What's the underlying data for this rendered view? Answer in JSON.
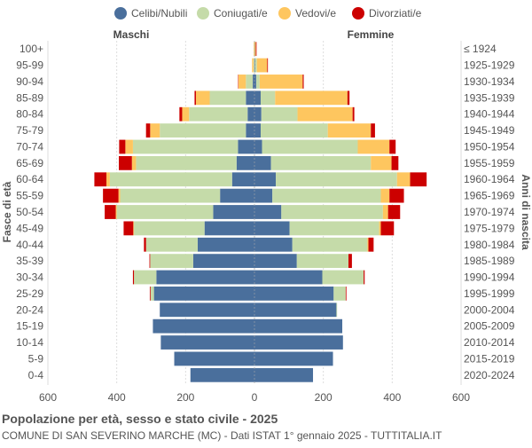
{
  "colors": {
    "celibi": "#4a6f9c",
    "coniugati": "#c5dba9",
    "vedovi": "#fec65f",
    "divorziati": "#cc0000",
    "grid": "#dddddd",
    "text": "#555555"
  },
  "chart_data": {
    "type": "bar",
    "orientation": "horizontal-pyramid",
    "left_header": "Maschi",
    "right_header": "Femmine",
    "ylabel_left": "Fasce di età",
    "ylabel_right": "Anni di nascita",
    "x_ticks": [
      "600",
      "400",
      "200",
      "0",
      "200",
      "400",
      "600"
    ],
    "xlim": [
      -600,
      600
    ],
    "grid": true,
    "legend_placement": "top",
    "categories": [
      "100+",
      "95-99",
      "90-94",
      "85-89",
      "80-84",
      "75-79",
      "70-74",
      "65-69",
      "60-64",
      "55-59",
      "50-54",
      "45-49",
      "40-44",
      "35-39",
      "30-34",
      "25-29",
      "20-24",
      "15-19",
      "10-14",
      "5-9",
      "0-4"
    ],
    "birth_years": [
      "≤ 1924",
      "1925-1929",
      "1930-1934",
      "1935-1939",
      "1940-1944",
      "1945-1949",
      "1950-1954",
      "1955-1959",
      "1960-1964",
      "1965-1969",
      "1970-1974",
      "1975-1979",
      "1980-1984",
      "1985-1989",
      "1990-1994",
      "1995-1999",
      "2000-2004",
      "2005-2009",
      "2010-2014",
      "2015-2019",
      "2020-2024"
    ],
    "series": [
      {
        "name": "Celibi/Nubili",
        "color_key": "celibi",
        "male": [
          0,
          0,
          5,
          25,
          20,
          25,
          48,
          52,
          65,
          100,
          120,
          145,
          165,
          178,
          285,
          292,
          275,
          295,
          272,
          233,
          186
        ],
        "female": [
          1,
          2,
          5,
          18,
          20,
          18,
          22,
          48,
          62,
          52,
          78,
          102,
          110,
          123,
          197,
          230,
          238,
          255,
          257,
          228,
          170
        ]
      },
      {
        "name": "Coniugati/e",
        "color_key": "coniugati",
        "male": [
          0,
          3,
          20,
          105,
          170,
          250,
          305,
          292,
          355,
          290,
          280,
          205,
          150,
          125,
          65,
          10,
          0,
          0,
          0,
          0,
          0
        ],
        "female": [
          0,
          5,
          10,
          42,
          105,
          195,
          278,
          290,
          352,
          315,
          295,
          260,
          218,
          150,
          120,
          35,
          2,
          0,
          0,
          0,
          0
        ]
      },
      {
        "name": "Vedovi/e",
        "color_key": "vedovi",
        "male": [
          2,
          4,
          22,
          40,
          20,
          28,
          22,
          12,
          10,
          5,
          3,
          2,
          0,
          0,
          0,
          0,
          0,
          0,
          0,
          0,
          0
        ],
        "female": [
          3,
          30,
          125,
          210,
          160,
          125,
          92,
          60,
          38,
          25,
          15,
          5,
          3,
          0,
          0,
          0,
          0,
          0,
          0,
          0,
          0
        ]
      },
      {
        "name": "Divorziati/e",
        "color_key": "divorziati",
        "male": [
          0,
          0,
          1,
          4,
          8,
          12,
          18,
          38,
          35,
          45,
          32,
          28,
          6,
          2,
          3,
          2,
          0,
          0,
          0,
          0,
          0
        ],
        "female": [
          2,
          2,
          3,
          6,
          5,
          12,
          18,
          20,
          48,
          42,
          35,
          38,
          15,
          10,
          3,
          2,
          0,
          0,
          0,
          0,
          0
        ]
      }
    ]
  },
  "footer": {
    "title": "Popolazione per età, sesso e stato civile - 2025",
    "subtitle": "COMUNE DI SAN SEVERINO MARCHE (MC) - Dati ISTAT 1° gennaio 2025 - TUTTITALIA.IT"
  }
}
